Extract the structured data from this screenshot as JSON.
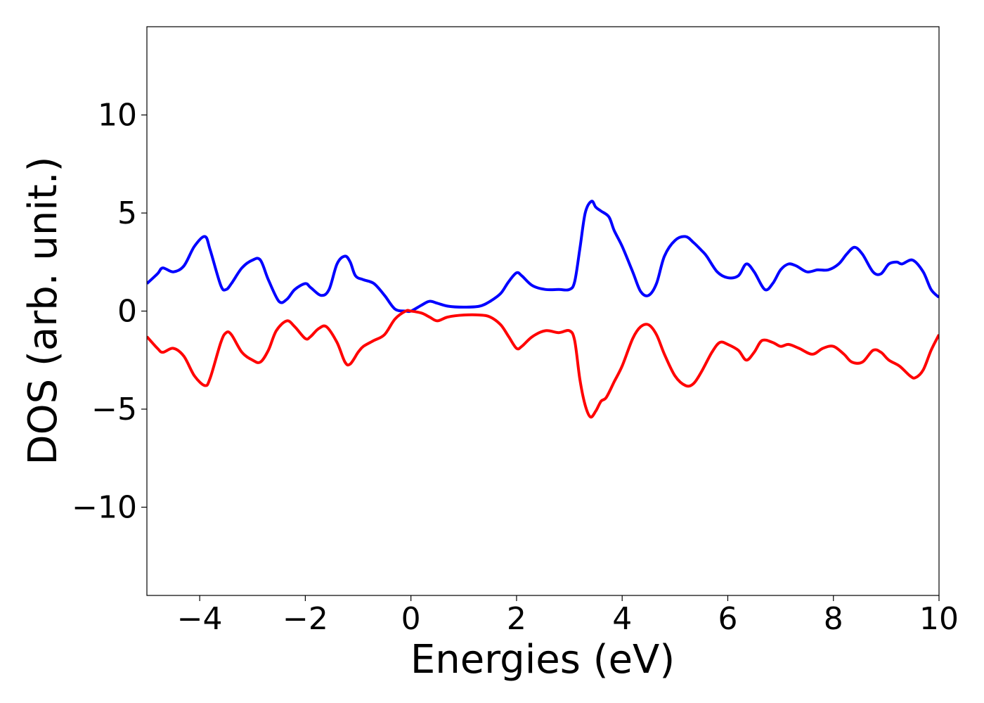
{
  "chart_data": {
    "type": "line",
    "title": "",
    "xlabel": "Energies (eV)",
    "ylabel": "DOS (arb. unit.)",
    "xlim": [
      -5,
      10
    ],
    "ylim": [
      -14.5,
      14.5
    ],
    "xticks": [
      -4,
      -2,
      0,
      2,
      4,
      6,
      8,
      10
    ],
    "yticks": [
      -10,
      -5,
      0,
      5,
      10
    ],
    "xtick_labels": [
      "−4",
      "−2",
      "0",
      "2",
      "4",
      "6",
      "8",
      "10"
    ],
    "ytick_labels": [
      "−10",
      "−5",
      "0",
      "5",
      "10"
    ],
    "grid": false,
    "legend": null,
    "series": [
      {
        "color": "#0000ff",
        "x": [
          -5.0,
          -4.8,
          -4.7,
          -4.5,
          -4.3,
          -4.1,
          -3.9,
          -3.8,
          -3.6,
          -3.5,
          -3.4,
          -3.2,
          -3.0,
          -2.85,
          -2.7,
          -2.5,
          -2.35,
          -2.2,
          -2.0,
          -1.9,
          -1.7,
          -1.55,
          -1.4,
          -1.25,
          -1.15,
          -1.05,
          -0.9,
          -0.7,
          -0.5,
          -0.3,
          -0.1,
          0.0,
          0.2,
          0.35,
          0.5,
          0.7,
          1.0,
          1.3,
          1.5,
          1.7,
          1.85,
          2.0,
          2.1,
          2.3,
          2.55,
          2.8,
          3.0,
          3.1,
          3.2,
          3.3,
          3.42,
          3.5,
          3.6,
          3.75,
          3.85,
          4.0,
          4.2,
          4.35,
          4.5,
          4.65,
          4.8,
          5.0,
          5.2,
          5.35,
          5.5,
          5.6,
          5.8,
          6.0,
          6.2,
          6.35,
          6.5,
          6.7,
          6.85,
          7.0,
          7.15,
          7.3,
          7.5,
          7.7,
          7.9,
          8.1,
          8.25,
          8.4,
          8.55,
          8.75,
          8.9,
          9.05,
          9.2,
          9.3,
          9.5,
          9.7,
          9.85,
          10.0
        ],
        "y": [
          1.4,
          1.9,
          2.2,
          2.0,
          2.3,
          3.3,
          3.8,
          3.1,
          1.3,
          1.1,
          1.4,
          2.2,
          2.6,
          2.6,
          1.6,
          0.5,
          0.6,
          1.1,
          1.4,
          1.2,
          0.8,
          1.1,
          2.4,
          2.8,
          2.5,
          1.8,
          1.6,
          1.4,
          0.8,
          0.1,
          0.0,
          0.0,
          0.3,
          0.5,
          0.4,
          0.25,
          0.2,
          0.25,
          0.5,
          0.9,
          1.5,
          1.95,
          1.8,
          1.3,
          1.1,
          1.1,
          1.1,
          1.5,
          3.2,
          5.0,
          5.6,
          5.3,
          5.1,
          4.8,
          4.1,
          3.3,
          2.0,
          1.0,
          0.8,
          1.4,
          2.8,
          3.6,
          3.8,
          3.5,
          3.1,
          2.8,
          2.0,
          1.7,
          1.8,
          2.4,
          2.0,
          1.1,
          1.4,
          2.1,
          2.4,
          2.3,
          2.0,
          2.1,
          2.1,
          2.4,
          2.9,
          3.25,
          2.9,
          2.0,
          1.9,
          2.4,
          2.5,
          2.4,
          2.6,
          2.0,
          1.1,
          0.7
        ]
      },
      {
        "color": "#ff0000",
        "x": [
          -5.0,
          -4.8,
          -4.7,
          -4.5,
          -4.3,
          -4.1,
          -3.9,
          -3.8,
          -3.6,
          -3.5,
          -3.4,
          -3.2,
          -3.0,
          -2.85,
          -2.7,
          -2.55,
          -2.35,
          -2.2,
          -2.0,
          -1.9,
          -1.75,
          -1.6,
          -1.4,
          -1.25,
          -1.15,
          -1.0,
          -0.9,
          -0.7,
          -0.5,
          -0.3,
          -0.1,
          0.0,
          0.2,
          0.35,
          0.5,
          0.7,
          1.0,
          1.3,
          1.5,
          1.7,
          1.85,
          2.0,
          2.1,
          2.3,
          2.55,
          2.8,
          3.0,
          3.1,
          3.2,
          3.3,
          3.4,
          3.5,
          3.6,
          3.7,
          3.85,
          4.0,
          4.2,
          4.35,
          4.5,
          4.65,
          4.8,
          5.0,
          5.2,
          5.35,
          5.5,
          5.7,
          5.85,
          6.0,
          6.2,
          6.35,
          6.5,
          6.65,
          6.85,
          7.0,
          7.15,
          7.35,
          7.6,
          7.8,
          8.0,
          8.2,
          8.35,
          8.55,
          8.75,
          8.9,
          9.05,
          9.25,
          9.45,
          9.55,
          9.7,
          9.85,
          10.0
        ],
        "y": [
          -1.3,
          -1.9,
          -2.1,
          -1.9,
          -2.3,
          -3.3,
          -3.8,
          -3.4,
          -1.6,
          -1.1,
          -1.2,
          -2.1,
          -2.5,
          -2.6,
          -2.0,
          -1.0,
          -0.5,
          -0.8,
          -1.4,
          -1.3,
          -0.9,
          -0.8,
          -1.6,
          -2.6,
          -2.7,
          -2.1,
          -1.8,
          -1.5,
          -1.2,
          -0.4,
          0.0,
          0.0,
          -0.1,
          -0.3,
          -0.5,
          -0.3,
          -0.2,
          -0.2,
          -0.3,
          -0.7,
          -1.3,
          -1.9,
          -1.8,
          -1.3,
          -1.0,
          -1.1,
          -1.0,
          -1.5,
          -3.5,
          -4.8,
          -5.4,
          -5.1,
          -4.6,
          -4.4,
          -3.6,
          -2.8,
          -1.4,
          -0.8,
          -0.7,
          -1.2,
          -2.2,
          -3.3,
          -3.8,
          -3.7,
          -3.1,
          -2.1,
          -1.6,
          -1.7,
          -2.0,
          -2.5,
          -2.1,
          -1.5,
          -1.6,
          -1.8,
          -1.7,
          -1.9,
          -2.2,
          -1.9,
          -1.8,
          -2.2,
          -2.6,
          -2.6,
          -2.0,
          -2.1,
          -2.5,
          -2.8,
          -3.3,
          -3.4,
          -3.0,
          -2.0,
          -1.2
        ]
      }
    ]
  }
}
